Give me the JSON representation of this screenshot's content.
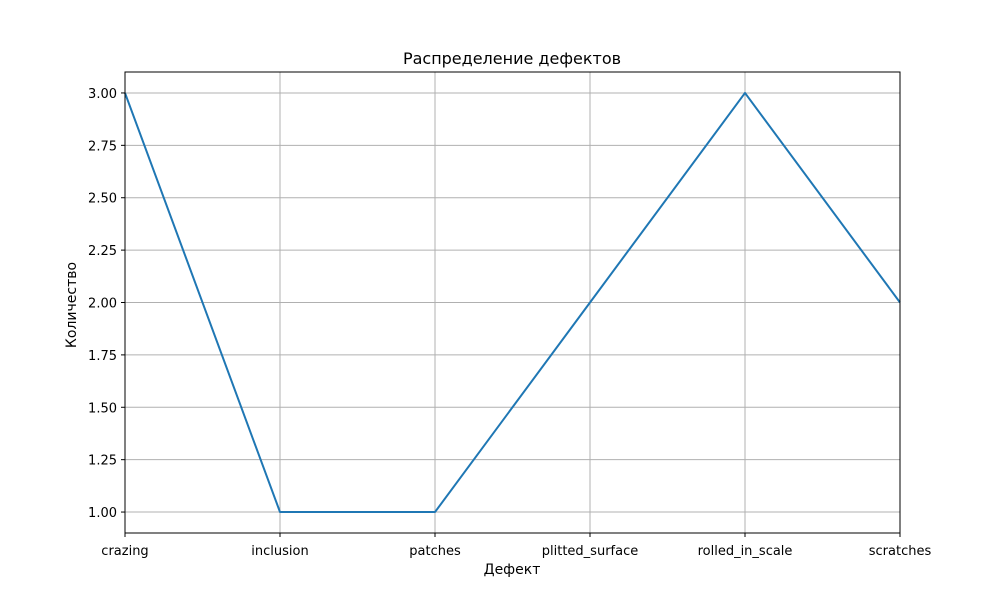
{
  "chart_data": {
    "type": "line",
    "title": "Распределение дефектов",
    "xlabel": "Дефект",
    "ylabel": "Количество",
    "categories": [
      "crazing",
      "inclusion",
      "patches",
      "plitted_surface",
      "rolled_in_scale",
      "scratches"
    ],
    "series": [
      {
        "values": [
          3,
          1,
          1,
          2,
          3,
          2
        ],
        "color": "#1f77b4"
      }
    ],
    "ylim": [
      0.9,
      3.1
    ],
    "yticks": [
      1.0,
      1.25,
      1.5,
      1.75,
      2.0,
      2.25,
      2.5,
      2.75,
      3.0
    ],
    "ytick_labels": [
      "1.00",
      "1.25",
      "1.50",
      "1.75",
      "2.00",
      "2.25",
      "2.50",
      "2.75",
      "3.00"
    ],
    "grid": true,
    "grid_color": "#b0b0b0"
  }
}
